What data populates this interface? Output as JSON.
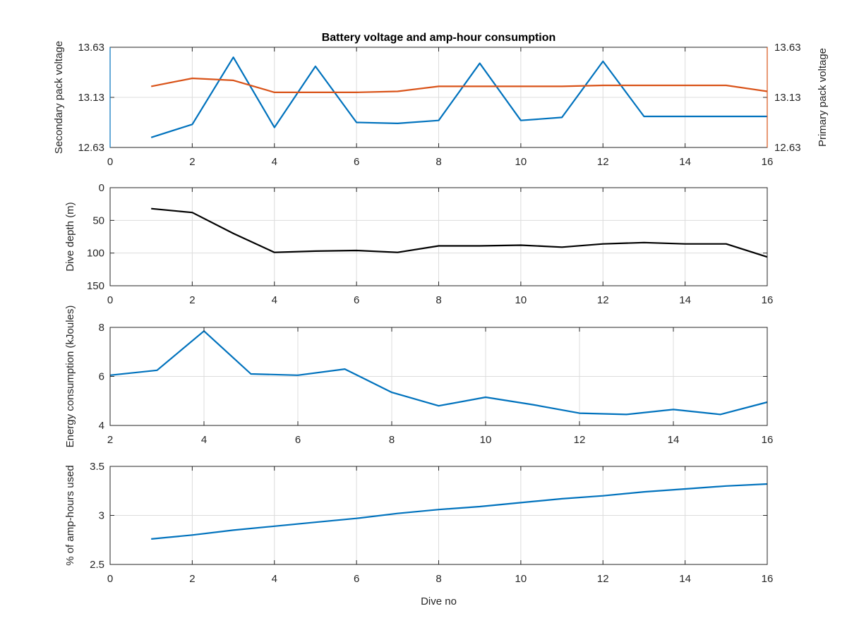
{
  "chart_data": [
    {
      "type": "line",
      "title": "Battery voltage and amp-hour consumption",
      "xlabel": "",
      "ylabel_left": "Secondary pack voltage",
      "ylabel_right": "Primary pack voltage",
      "xlim": [
        0,
        16
      ],
      "xticks": [
        0,
        2,
        4,
        6,
        8,
        10,
        12,
        14,
        16
      ],
      "ylim": [
        12.63,
        13.63
      ],
      "yticks": [
        12.63,
        13.13,
        13.63
      ],
      "ytick_labels": [
        "12.63",
        "13.13",
        "13.63"
      ],
      "grid": true,
      "series": [
        {
          "axis": "left",
          "color": "#0072bd",
          "x": [
            1,
            2,
            3,
            4,
            5,
            6,
            7,
            8,
            9,
            10,
            11,
            12,
            13,
            14,
            15,
            16
          ],
          "y": [
            12.73,
            12.86,
            13.53,
            12.83,
            13.44,
            12.88,
            12.87,
            12.9,
            13.47,
            12.9,
            12.93,
            13.49,
            12.94,
            12.94,
            12.94,
            12.94
          ]
        },
        {
          "axis": "right",
          "color": "#d95319",
          "x": [
            1,
            2,
            3,
            4,
            5,
            6,
            7,
            8,
            9,
            10,
            11,
            12,
            13,
            14,
            15,
            16
          ],
          "y": [
            13.24,
            13.32,
            13.3,
            13.18,
            13.18,
            13.18,
            13.19,
            13.24,
            13.24,
            13.24,
            13.24,
            13.25,
            13.25,
            13.25,
            13.25,
            13.19
          ]
        }
      ]
    },
    {
      "type": "line",
      "title": "",
      "xlabel": "",
      "ylabel": "Dive depth (m)",
      "xlim": [
        0,
        16
      ],
      "xticks": [
        0,
        2,
        4,
        6,
        8,
        10,
        12,
        14,
        16
      ],
      "ylim": [
        0,
        150
      ],
      "yreversed": true,
      "yticks": [
        0,
        50,
        100,
        150
      ],
      "ytick_labels": [
        "0",
        "50",
        "100",
        "150"
      ],
      "grid": true,
      "series": [
        {
          "color": "#000000",
          "x": [
            1,
            2,
            3,
            4,
            5,
            6,
            7,
            8,
            9,
            10,
            11,
            12,
            13,
            14,
            15,
            16
          ],
          "y": [
            32,
            38,
            70,
            99,
            97,
            96,
            99,
            89,
            89,
            88,
            91,
            86,
            84,
            86,
            86,
            106
          ]
        }
      ]
    },
    {
      "type": "line",
      "title": "",
      "xlabel": "",
      "ylabel": "Energy consumption (kJoules)",
      "xlim": [
        2,
        16
      ],
      "xticks": [
        2,
        4,
        6,
        8,
        10,
        12,
        14,
        16
      ],
      "ylim": [
        4,
        8
      ],
      "yticks": [
        4,
        6,
        8
      ],
      "ytick_labels": [
        "4",
        "6",
        "8"
      ],
      "grid": true,
      "series": [
        {
          "color": "#0072bd",
          "x": [
            2,
            3,
            4,
            5,
            6,
            7,
            8,
            9,
            10,
            11,
            12,
            13,
            14,
            15,
            16
          ],
          "y": [
            6.05,
            6.25,
            7.85,
            6.1,
            6.05,
            6.3,
            5.35,
            4.8,
            5.15,
            4.85,
            4.5,
            4.45,
            4.65,
            4.45,
            4.95
          ]
        }
      ]
    },
    {
      "type": "line",
      "title": "",
      "xlabel": "Dive no",
      "ylabel": "% of amp-hours used",
      "xlim": [
        0,
        16
      ],
      "xticks": [
        0,
        2,
        4,
        6,
        8,
        10,
        12,
        14,
        16
      ],
      "ylim": [
        2.5,
        3.5
      ],
      "yticks": [
        2.5,
        3,
        3.5
      ],
      "ytick_labels": [
        "2.5",
        "3",
        "3.5"
      ],
      "grid": true,
      "series": [
        {
          "color": "#0072bd",
          "x": [
            1,
            2,
            3,
            4,
            5,
            6,
            7,
            8,
            9,
            10,
            11,
            12,
            13,
            14,
            15,
            16
          ],
          "y": [
            2.76,
            2.8,
            2.85,
            2.89,
            2.93,
            2.97,
            3.02,
            3.06,
            3.09,
            3.13,
            3.17,
            3.2,
            3.24,
            3.27,
            3.3,
            3.32
          ]
        }
      ]
    }
  ],
  "colors": {
    "left_axis_top": "#0072bd",
    "right_axis_top": "#d95319",
    "axis_default": "#262626"
  }
}
